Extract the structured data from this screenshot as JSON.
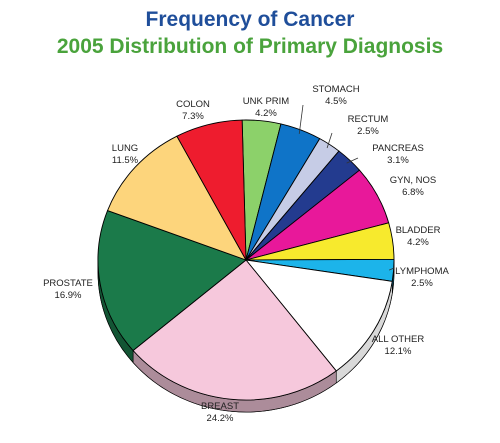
{
  "chart_data": {
    "type": "pie",
    "title": "Frequency of Cancer",
    "subtitle": "2005 Distribution of Primary Diagnosis",
    "slices": [
      {
        "name": "UNK PRIM",
        "value": 4.2,
        "label": "4.2%",
        "color": "#8cd16a"
      },
      {
        "name": "STOMACH",
        "value": 4.5,
        "label": "4.5%",
        "color": "#0f74c8"
      },
      {
        "name": "RECTUM",
        "value": 2.5,
        "label": "2.5%",
        "color": "#c6cce6"
      },
      {
        "name": "PANCREAS",
        "value": 3.1,
        "label": "3.1%",
        "color": "#233b8f"
      },
      {
        "name": "GYN, NOS",
        "value": 6.8,
        "label": "6.8%",
        "color": "#e8189a"
      },
      {
        "name": "BLADDER",
        "value": 4.2,
        "label": "4.2%",
        "color": "#f7ea2d"
      },
      {
        "name": "LYMPHOMA",
        "value": 2.5,
        "label": "2.5%",
        "color": "#1cb4ea"
      },
      {
        "name": "ALL OTHER",
        "value": 12.1,
        "label": "12.1%",
        "color": "#ffffff"
      },
      {
        "name": "BREAST",
        "value": 24.2,
        "label": "24.2%",
        "color": "#f6c8dc"
      },
      {
        "name": "PROSTATE",
        "value": 16.9,
        "label": "16.9%",
        "color": "#1b7a4a"
      },
      {
        "name": "LUNG",
        "value": 11.5,
        "label": "11.5%",
        "color": "#fdd57c"
      },
      {
        "name": "COLON",
        "value": 7.3,
        "label": "7.3%",
        "color": "#ee1c2e"
      }
    ]
  }
}
